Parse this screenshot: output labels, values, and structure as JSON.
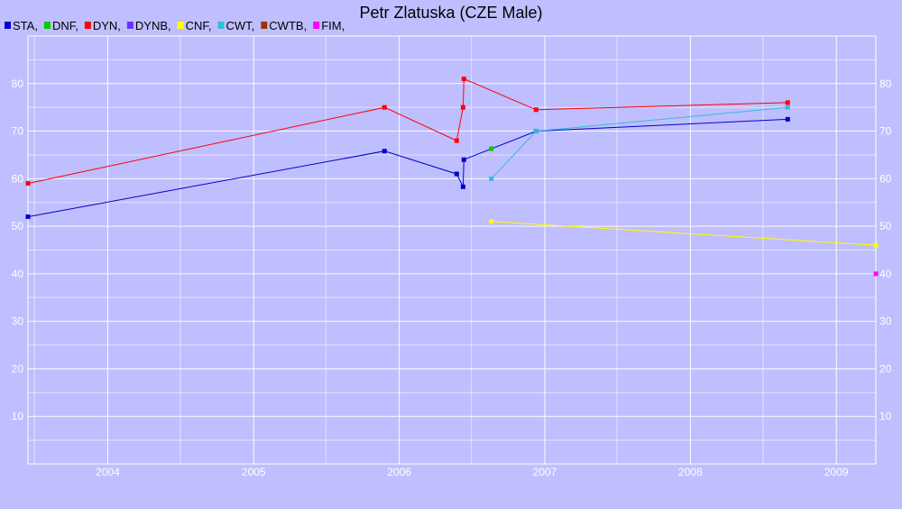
{
  "chart_data": {
    "type": "line",
    "title": "Petr Zlatuska (CZE Male)",
    "xlabel": "",
    "ylabel": "",
    "x_axis": {
      "type": "date",
      "min": "2003-06-15",
      "max": "2009-04-10",
      "ticks": [
        "2004",
        "2005",
        "2006",
        "2007",
        "2008",
        "2009"
      ]
    },
    "y_axis": {
      "min": 0,
      "max": 90,
      "ticks": [
        10,
        20,
        30,
        40,
        50,
        60,
        70,
        80
      ]
    },
    "grid": true,
    "legend_position": "top-left",
    "legend": [
      {
        "label": "STA,",
        "color": "#0000cc"
      },
      {
        "label": "DNF,",
        "color": "#00cc00"
      },
      {
        "label": "DYN,",
        "color": "#ff0000"
      },
      {
        "label": "DYNB,",
        "color": "#6633ff"
      },
      {
        "label": "CNF,",
        "color": "#ffff00"
      },
      {
        "label": "CWT,",
        "color": "#33bbdd"
      },
      {
        "label": "CWTB,",
        "color": "#993300"
      },
      {
        "label": "FIM,",
        "color": "#ff00ff"
      }
    ],
    "series": [
      {
        "name": "STA",
        "color": "#0000cc",
        "points": [
          [
            "2003-06-15",
            52
          ],
          [
            "2005-11-25",
            65.8
          ],
          [
            "2006-05-25",
            61
          ],
          [
            "2006-06-10",
            58.3
          ],
          [
            "2006-06-12",
            64
          ],
          [
            "2006-12-10",
            70
          ],
          [
            "2008-09-01",
            72.5
          ]
        ]
      },
      {
        "name": "DNF",
        "color": "#00cc00",
        "points": [
          [
            "2006-08-20",
            66.3
          ]
        ]
      },
      {
        "name": "DYN",
        "color": "#ff0000",
        "points": [
          [
            "2003-06-15",
            59
          ],
          [
            "2005-11-25",
            75
          ],
          [
            "2006-05-25",
            68
          ],
          [
            "2006-06-10",
            75
          ],
          [
            "2006-06-12",
            81
          ],
          [
            "2006-12-10",
            74.5
          ],
          [
            "2008-09-01",
            76
          ]
        ]
      },
      {
        "name": "CNF",
        "color": "#ffff00",
        "points": [
          [
            "2006-08-20",
            51
          ],
          [
            "2009-04-10",
            46
          ]
        ]
      },
      {
        "name": "CWT",
        "color": "#33bbdd",
        "points": [
          [
            "2006-08-20",
            60
          ],
          [
            "2006-12-10",
            70
          ],
          [
            "2008-09-01",
            75
          ]
        ]
      },
      {
        "name": "FIM",
        "color": "#ff00ff",
        "points": [
          [
            "2009-04-10",
            40
          ]
        ]
      }
    ]
  }
}
